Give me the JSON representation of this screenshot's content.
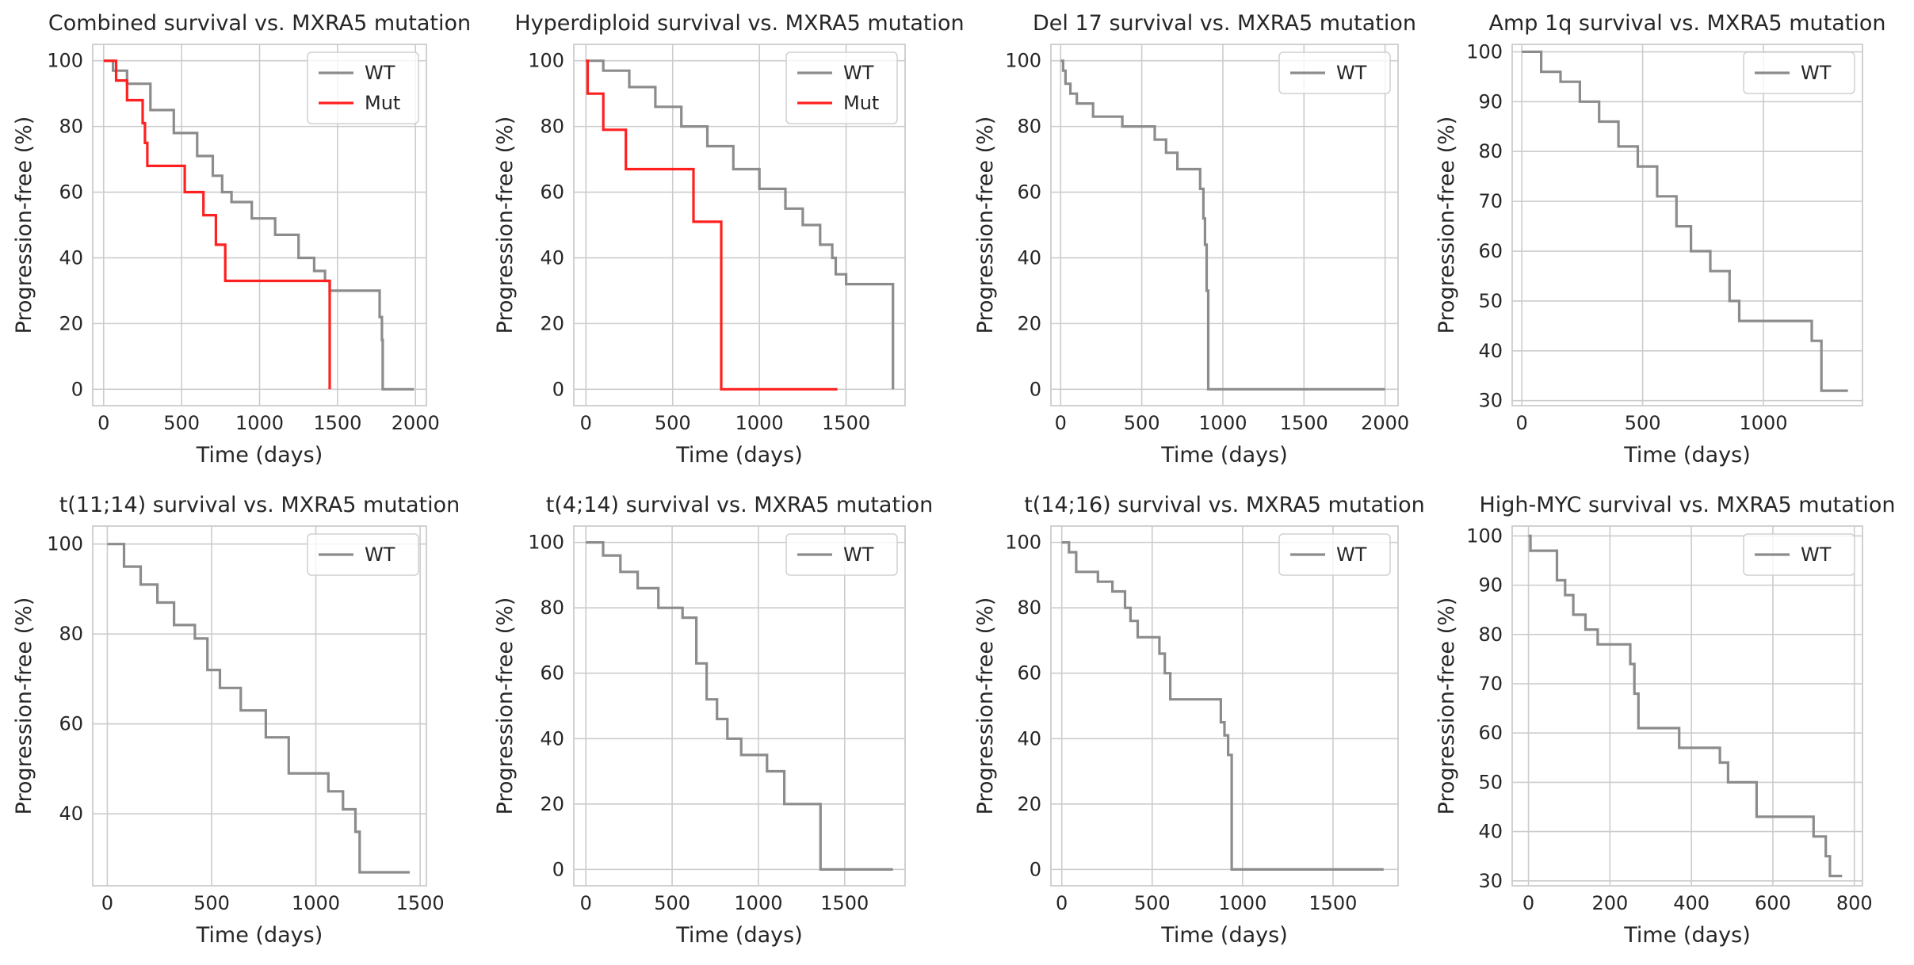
{
  "figure": {
    "colors": {
      "WT": "#8c8c8c",
      "Mut": "#ff2020",
      "grid": "#cccccc",
      "text": "#262626"
    }
  },
  "chart_data": [
    {
      "type": "line",
      "title": "Combined survival vs. MXRA5 mutation",
      "xlabel": "Time (days)",
      "ylabel": "Progression-free (%)",
      "xlim": [
        -70,
        2070
      ],
      "ylim": [
        -5,
        105
      ],
      "xticks": [
        0,
        500,
        1000,
        1500,
        2000
      ],
      "yticks": [
        0,
        20,
        40,
        60,
        80,
        100
      ],
      "legend": "upper right",
      "series": [
        {
          "name": "WT",
          "x": [
            0,
            60,
            150,
            300,
            450,
            600,
            700,
            760,
            820,
            950,
            1100,
            1250,
            1350,
            1420,
            1450,
            1770,
            1785,
            1790,
            1990
          ],
          "y": [
            100,
            97,
            93,
            85,
            78,
            71,
            65,
            60,
            57,
            52,
            47,
            40,
            36,
            33,
            30,
            22,
            15,
            0,
            0
          ]
        },
        {
          "name": "Mut",
          "x": [
            0,
            80,
            150,
            250,
            265,
            280,
            520,
            640,
            720,
            780,
            1450
          ],
          "y": [
            100,
            94,
            88,
            81,
            75,
            68,
            60,
            53,
            44,
            33,
            0
          ]
        }
      ]
    },
    {
      "type": "line",
      "title": "Hyperdiploid survival vs. MXRA5 mutation",
      "xlabel": "Time (days)",
      "ylabel": "Progression-free (%)",
      "xlim": [
        -70,
        1840
      ],
      "ylim": [
        -5,
        105
      ],
      "xticks": [
        0,
        500,
        1000,
        1500
      ],
      "yticks": [
        0,
        20,
        40,
        60,
        80,
        100
      ],
      "legend": "upper right",
      "series": [
        {
          "name": "WT",
          "x": [
            0,
            100,
            250,
            400,
            550,
            700,
            850,
            1000,
            1150,
            1250,
            1350,
            1420,
            1440,
            1500,
            1770
          ],
          "y": [
            100,
            97,
            92,
            86,
            80,
            74,
            67,
            61,
            55,
            50,
            44,
            40,
            35,
            32,
            0
          ]
        },
        {
          "name": "Mut",
          "x": [
            0,
            10,
            100,
            230,
            620,
            780,
            1450
          ],
          "y": [
            100,
            90,
            79,
            67,
            51,
            0,
            0
          ]
        }
      ]
    },
    {
      "type": "line",
      "title": "Del 17 survival vs. MXRA5 mutation",
      "xlabel": "Time (days)",
      "ylabel": "Progression-free (%)",
      "xlim": [
        -60,
        2080
      ],
      "ylim": [
        -5,
        105
      ],
      "xticks": [
        0,
        500,
        1000,
        1500,
        2000
      ],
      "yticks": [
        0,
        20,
        40,
        60,
        80,
        100
      ],
      "legend": "upper right",
      "series": [
        {
          "name": "WT",
          "x": [
            0,
            15,
            30,
            60,
            100,
            200,
            380,
            580,
            650,
            720,
            860,
            880,
            890,
            900,
            910,
            2000
          ],
          "y": [
            100,
            97,
            93,
            90,
            87,
            83,
            80,
            76,
            72,
            67,
            61,
            52,
            44,
            30,
            0,
            0
          ]
        }
      ]
    },
    {
      "type": "line",
      "title": "Amp 1q survival vs. MXRA5 mutation",
      "xlabel": "Time (days)",
      "ylabel": "Progression-free (%)",
      "xlim": [
        -40,
        1410
      ],
      "ylim": [
        29,
        101.5
      ],
      "xticks": [
        0,
        500,
        1000
      ],
      "yticks": [
        30,
        40,
        50,
        60,
        70,
        80,
        90,
        100
      ],
      "legend": "upper right",
      "series": [
        {
          "name": "WT",
          "x": [
            0,
            80,
            160,
            240,
            320,
            400,
            480,
            560,
            640,
            700,
            780,
            860,
            900,
            1150,
            1200,
            1240,
            1350
          ],
          "y": [
            100,
            96,
            94,
            90,
            86,
            81,
            77,
            71,
            65,
            60,
            56,
            50,
            46,
            46,
            42,
            32,
            32
          ]
        }
      ]
    },
    {
      "type": "line",
      "title": "t(11;14) survival vs. MXRA5 mutation",
      "xlabel": "Time (days)",
      "ylabel": "Progression-free (%)",
      "xlim": [
        -70,
        1530
      ],
      "ylim": [
        24,
        104
      ],
      "xticks": [
        0,
        500,
        1000,
        1500
      ],
      "yticks": [
        40,
        60,
        80,
        100
      ],
      "legend": "upper right",
      "series": [
        {
          "name": "WT",
          "x": [
            0,
            80,
            160,
            240,
            320,
            420,
            480,
            540,
            640,
            760,
            870,
            1060,
            1130,
            1190,
            1210,
            1450
          ],
          "y": [
            100,
            95,
            91,
            87,
            82,
            79,
            72,
            68,
            63,
            57,
            49,
            45,
            41,
            36,
            27,
            27
          ]
        }
      ]
    },
    {
      "type": "line",
      "title": "t(4;14) survival vs. MXRA5 mutation",
      "xlabel": "Time (days)",
      "ylabel": "Progression-free (%)",
      "xlim": [
        -70,
        1850
      ],
      "ylim": [
        -5,
        105
      ],
      "xticks": [
        0,
        500,
        1000,
        1500
      ],
      "yticks": [
        0,
        20,
        40,
        60,
        80,
        100
      ],
      "legend": "upper right",
      "series": [
        {
          "name": "WT",
          "x": [
            0,
            100,
            200,
            300,
            420,
            560,
            640,
            700,
            760,
            820,
            900,
            1050,
            1150,
            1330,
            1360,
            1780
          ],
          "y": [
            100,
            96,
            91,
            86,
            80,
            77,
            63,
            52,
            46,
            40,
            35,
            30,
            20,
            20,
            0,
            0
          ]
        }
      ]
    },
    {
      "type": "line",
      "title": "t(14;16) survival vs. MXRA5 mutation",
      "xlabel": "Time (days)",
      "ylabel": "Progression-free (%)",
      "xlim": [
        -60,
        1860
      ],
      "ylim": [
        -5,
        105
      ],
      "xticks": [
        0,
        500,
        1000,
        1500
      ],
      "yticks": [
        0,
        20,
        40,
        60,
        80,
        100
      ],
      "legend": "upper right",
      "series": [
        {
          "name": "WT",
          "x": [
            0,
            40,
            80,
            200,
            280,
            350,
            380,
            420,
            540,
            570,
            600,
            880,
            900,
            920,
            940,
            1780
          ],
          "y": [
            100,
            97,
            91,
            88,
            85,
            80,
            76,
            71,
            66,
            60,
            52,
            45,
            41,
            35,
            0,
            0
          ]
        }
      ]
    },
    {
      "type": "line",
      "title": "High-MYC survival vs. MXRA5 mutation",
      "xlabel": "Time (days)",
      "ylabel": "Progression-free (%)",
      "xlim": [
        -40,
        820
      ],
      "ylim": [
        29,
        102
      ],
      "xticks": [
        0,
        200,
        400,
        600,
        800
      ],
      "yticks": [
        30,
        40,
        50,
        60,
        70,
        80,
        90,
        100
      ],
      "legend": "upper right",
      "series": [
        {
          "name": "WT",
          "x": [
            0,
            5,
            60,
            70,
            90,
            110,
            140,
            170,
            250,
            260,
            270,
            370,
            470,
            490,
            550,
            560,
            700,
            730,
            740,
            770
          ],
          "y": [
            100,
            97,
            97,
            91,
            88,
            84,
            81,
            78,
            74,
            68,
            61,
            57,
            54,
            50,
            50,
            43,
            39,
            35,
            31,
            31
          ]
        }
      ]
    }
  ]
}
